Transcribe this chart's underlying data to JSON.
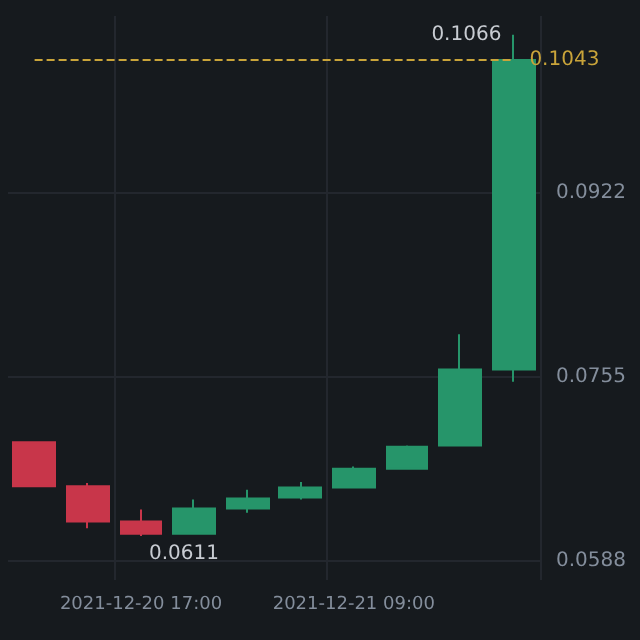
{
  "chart_data": {
    "type": "candlestick",
    "categories": [
      null,
      null,
      "2021-12-20 17:00",
      null,
      null,
      null,
      "2021-12-21 09:00",
      null,
      null,
      null
    ],
    "ohlc": [
      [
        0.0696,
        0.0696,
        0.0656,
        0.0656
      ],
      [
        0.0656,
        0.0659,
        0.0618,
        0.0624
      ],
      [
        0.0624,
        0.0635,
        0.0611,
        0.0613
      ],
      [
        0.0613,
        0.0644,
        0.0612,
        0.0636
      ],
      [
        0.0636,
        0.0653,
        0.0632,
        0.0645
      ],
      [
        0.0646,
        0.066,
        0.0644,
        0.0655
      ],
      [
        0.0655,
        0.0674,
        0.0654,
        0.0672
      ],
      [
        0.0672,
        0.0693,
        0.0672,
        0.0692
      ],
      [
        0.0693,
        0.0794,
        0.0693,
        0.0762
      ],
      [
        0.0762,
        0.1066,
        0.0751,
        0.1043
      ]
    ],
    "colors": [
      "#c8364a",
      "#c8364a",
      "#c8364a",
      "#26956a",
      "#26956a",
      "#26956a",
      "#26956a",
      "#26956a",
      "#26956a",
      "#26956a"
    ],
    "ylim": [
      0.0571,
      0.1083
    ],
    "yticks": [
      0.0588,
      0.0755,
      0.0922
    ],
    "grid": true,
    "ref_lines": [
      {
        "axis": "y",
        "value": 0.1043,
        "label": "0.1043",
        "color": "#c9a43a",
        "line_style": "dashed"
      }
    ],
    "annotations": [
      "0.1066",
      "0.0611"
    ]
  }
}
